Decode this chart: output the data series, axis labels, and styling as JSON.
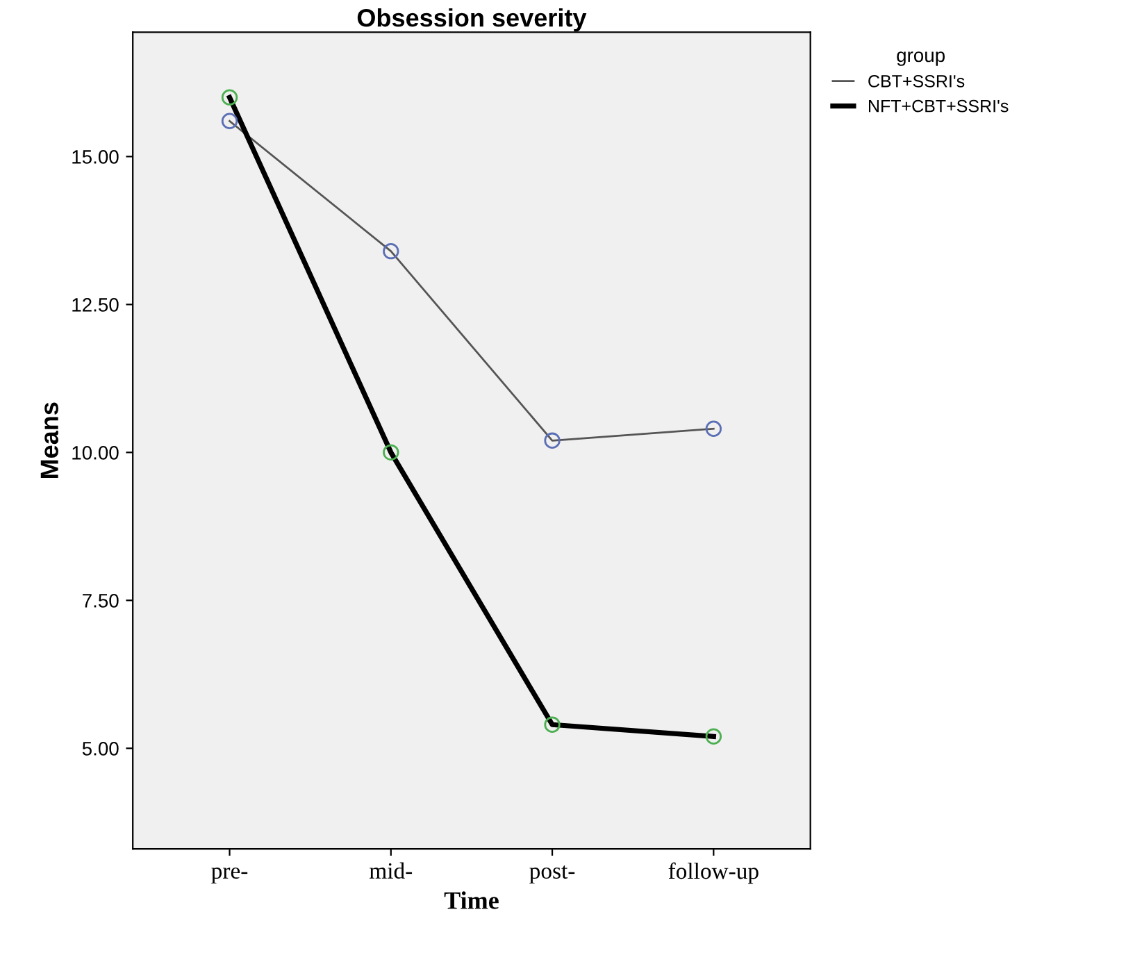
{
  "chart_data": {
    "type": "line",
    "title": "Obsession severity",
    "xlabel": "Time",
    "ylabel": "Means",
    "legend_title": "group",
    "legend": "top right",
    "marker": "circle",
    "grid": false,
    "categories": [
      "pre-",
      "mid-",
      "post-",
      "follow-up"
    ],
    "ylim": [
      3.3,
      17.1
    ],
    "yticks": [
      {
        "value": 5,
        "label": "5.00"
      },
      {
        "value": 7.5,
        "label": "7.50"
      },
      {
        "value": 10,
        "label": "10.00"
      },
      {
        "value": 12.5,
        "label": "12.50"
      },
      {
        "value": 15,
        "label": "15.00"
      }
    ],
    "series": [
      {
        "name": "CBT+SSRI's",
        "color": "#555555",
        "colors": [
          "#5b6fb5",
          "#5b6fb5",
          "#5b6fb5",
          "#5b6fb5"
        ],
        "values": [
          15.6,
          13.4,
          10.2,
          10.4
        ]
      },
      {
        "name": "NFT+CBT+SSRI's",
        "color": "#000000",
        "colors": [
          "#4caf50",
          "#4caf50",
          "#4caf50",
          "#4caf50"
        ],
        "values": [
          16.0,
          10.0,
          5.4,
          5.2
        ]
      }
    ]
  }
}
